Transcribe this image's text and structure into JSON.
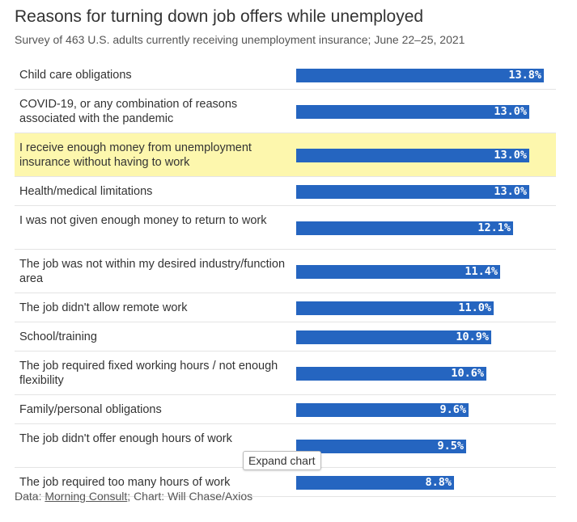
{
  "title": "Reasons for turning down job offers while unemployed",
  "subtitle": "Survey of 463 U.S. adults currently receiving unemployment insurance; June 22–25, 2021",
  "expand_label": "Expand chart",
  "footer": {
    "data_prefix": "Data: ",
    "source_link": "Morning Consult",
    "credit": "; Chart: Will Chase/Axios"
  },
  "colors": {
    "bar": "#2565c0",
    "highlight": "#fdf7ad",
    "value_text": "#ffffff"
  },
  "chart_data": {
    "type": "bar",
    "orientation": "horizontal",
    "title": "Reasons for turning down job offers while unemployed",
    "subtitle": "Survey of 463 U.S. adults currently receiving unemployment insurance; June 22–25, 2021",
    "unit": "%",
    "xlim": [
      0,
      14
    ],
    "grid": false,
    "highlighted_category": "I receive enough money from unemployment insurance without having to work",
    "categories": [
      "Child care obligations",
      "COVID-19, or any combination of reasons associated with the pandemic",
      "I receive enough money from unemployment insurance without having to work",
      "Health/medical limitations",
      "I was not given enough money to return to work",
      "The job was not within my desired industry/function area",
      "The job didn't allow remote work",
      "School/training",
      "The job required fixed working hours / not enough flexibility",
      "Family/personal obligations",
      "The job didn't offer enough hours of work",
      "The job required too many hours of work"
    ],
    "values": [
      13.8,
      13.0,
      13.0,
      13.0,
      12.1,
      11.4,
      11.0,
      10.9,
      10.6,
      9.6,
      9.5,
      8.8
    ],
    "value_labels": [
      "13.8%",
      "13.0%",
      "13.0%",
      "13.0%",
      "12.1%",
      "11.4%",
      "11.0%",
      "10.9%",
      "10.6%",
      "9.6%",
      "9.5%",
      "8.8%"
    ]
  }
}
